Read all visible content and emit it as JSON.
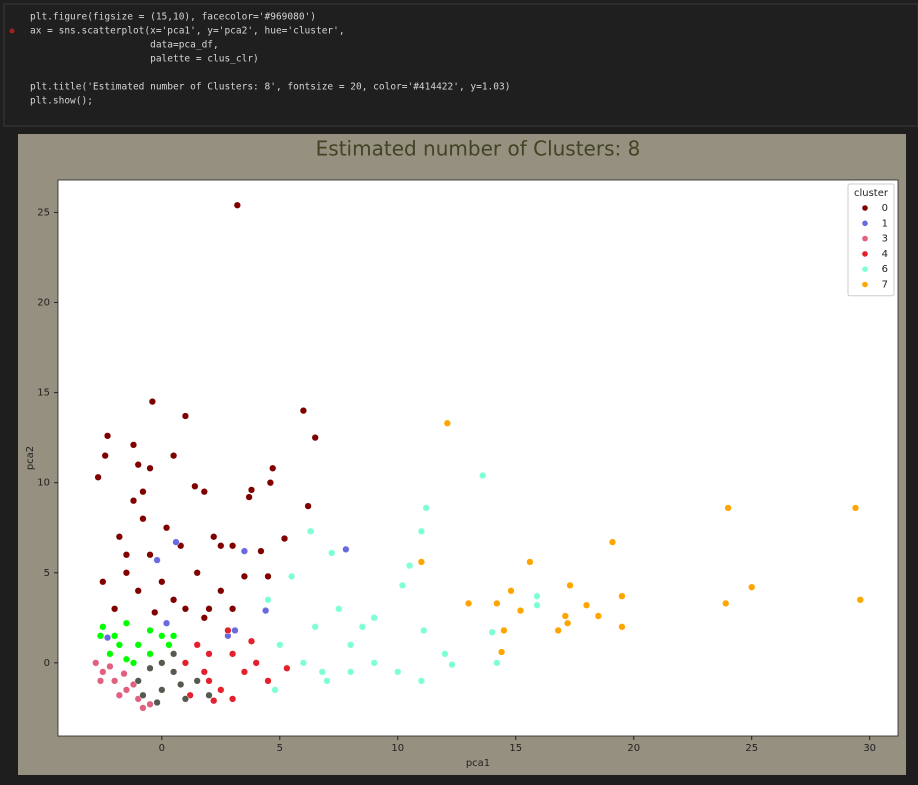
{
  "code": {
    "lines": [
      "plt.figure(figsize = (15,10), facecolor='#969080')",
      "ax = sns.scatterplot(x='pca1', y='pca2', hue='cluster',",
      "                     data=pca_df,",
      "                     palette = clus_clr)",
      "plt.title('Estimated number of Clusters: 8', fontsize = 20, color='#414422', y=1.03)",
      "plt.show();"
    ]
  },
  "chart_data": {
    "type": "scatter",
    "title": "Estimated number of Clusters: 8",
    "x_label": "pca1",
    "y_label": "pca2",
    "legend_title": "cluster",
    "legend": "upper right",
    "xlim": [
      -4.4,
      31.2
    ],
    "ylim": [
      -4.06,
      26.8
    ],
    "xticks": [
      0,
      5,
      10,
      15,
      20,
      25,
      30
    ],
    "yticks": [
      0,
      5,
      10,
      15,
      20,
      25
    ],
    "series": [
      {
        "name": "0",
        "color": "#800000",
        "x": [
          3.2,
          -0.4,
          1,
          6,
          6.5,
          -2.3,
          -1.2,
          -2.4,
          0.5,
          -2.7,
          -1,
          -0.5,
          4.7,
          4.6,
          3.8,
          3.7,
          1.4,
          1.8,
          6.2,
          5.2,
          4.2,
          3,
          2.5,
          -1.5,
          -1,
          0,
          0.5,
          1,
          2,
          -2,
          -0.5,
          1.5,
          2.5,
          3,
          -1.8,
          -0.8,
          -1.2,
          0.2,
          -2.5,
          1.8,
          3.5,
          4.5,
          -0.3,
          0.8,
          -1.5,
          2.2,
          -0.8
        ],
        "values": [
          25.4,
          14.5,
          13.7,
          14,
          12.5,
          12.6,
          12.1,
          11.5,
          11.5,
          10.3,
          11,
          10.8,
          10.8,
          10,
          9.6,
          9.2,
          9.8,
          9.5,
          8.7,
          6.9,
          6.2,
          6.5,
          6.5,
          5,
          4,
          4.5,
          3.5,
          3,
          3,
          3,
          6,
          5,
          4,
          3,
          7,
          8,
          9,
          7.5,
          4.5,
          2.5,
          4.8,
          4.8,
          2.8,
          6.5,
          6,
          7,
          9.5
        ]
      },
      {
        "name": "1",
        "color": "#6a6ae0",
        "x": [
          7.8,
          3.5,
          0.6,
          4.4,
          -0.2,
          3.1,
          2.8,
          -2.3,
          0.2
        ],
        "values": [
          6.3,
          6.2,
          6.7,
          2.9,
          5.7,
          1.8,
          1.5,
          1.4,
          2.2
        ]
      },
      {
        "name": "3",
        "color": "#e0607f",
        "x": [
          -2.5,
          -2,
          -1.5,
          -1,
          -0.5,
          -2.8,
          -2.2,
          -1.8,
          -1.2,
          -2.6,
          -0.8,
          -1.6
        ],
        "values": [
          -0.5,
          -1,
          -1.5,
          -2,
          -2.3,
          0,
          -0.2,
          -1.8,
          -1.2,
          -1,
          -2.5,
          -0.6
        ]
      },
      {
        "name": "4",
        "color": "#e3202c",
        "x": [
          1,
          2,
          3,
          2.5,
          1.5,
          3.5,
          4,
          2,
          3,
          4.5,
          1.2,
          2.8,
          3.8,
          5.3,
          1.8,
          2.2
        ],
        "values": [
          0,
          -1,
          0.5,
          -1.5,
          1,
          -0.5,
          0,
          0.5,
          -2,
          -1,
          -1.8,
          1.8,
          1.2,
          -0.3,
          -0.5,
          -2.1
        ]
      },
      {
        "name": "6",
        "color": "#7fffd4",
        "x": [
          5,
          6,
          7,
          8,
          9,
          10,
          11,
          6.5,
          7.5,
          9,
          10.5,
          11.2,
          11,
          13.6,
          12.3,
          14,
          14.2,
          15.9,
          15.9,
          10.2,
          8.5,
          6.3,
          4.5,
          5.5,
          7.2,
          12,
          4.8,
          6.8,
          8,
          11.1
        ],
        "values": [
          1,
          0,
          -1,
          1,
          0,
          -0.5,
          -1,
          2,
          3,
          2.5,
          5.4,
          8.6,
          7.3,
          10.4,
          -0.1,
          1.7,
          0,
          3.7,
          3.2,
          4.3,
          2,
          7.3,
          3.5,
          4.8,
          6.1,
          0.5,
          -1.5,
          -0.5,
          -0.5,
          1.8
        ]
      },
      {
        "name": "7",
        "color": "#ffa500",
        "x": [
          12.1,
          11,
          13,
          14.4,
          14.5,
          14.2,
          14.8,
          15.2,
          15.6,
          16.8,
          17.1,
          17.3,
          17.2,
          18,
          18.5,
          19.1,
          19.5,
          19.5,
          24,
          23.9,
          25,
          29.4,
          29.6
        ],
        "values": [
          13.3,
          5.6,
          3.3,
          0.6,
          1.8,
          3.3,
          4,
          2.9,
          5.6,
          1.8,
          2.6,
          4.3,
          2.2,
          3.2,
          2.6,
          6.7,
          3.7,
          2,
          8.6,
          3.3,
          4.2,
          8.6,
          3.5
        ]
      },
      {
        "name": null,
        "color": "#00ff00",
        "x": [
          -2.5,
          -2,
          -1.5,
          -1,
          -0.5,
          0,
          -2.2,
          -1.8,
          -1.2,
          -0.5,
          0.5,
          -2.6,
          -1.5,
          0.3
        ],
        "values": [
          2,
          1.5,
          2.2,
          1,
          0.5,
          1.5,
          0.5,
          1,
          0,
          1.8,
          1.5,
          1.5,
          0.2,
          1
        ]
      },
      {
        "name": null,
        "color": "#555a50",
        "x": [
          -1,
          0,
          0.5,
          1,
          -0.5,
          0,
          1.5,
          -0.2,
          0.8,
          -0.8,
          0.5,
          2
        ],
        "values": [
          -1,
          -1.5,
          -0.5,
          -2,
          -0.3,
          0,
          -1,
          -2.2,
          -1.2,
          -1.8,
          0.5,
          -1.8
        ]
      }
    ]
  }
}
